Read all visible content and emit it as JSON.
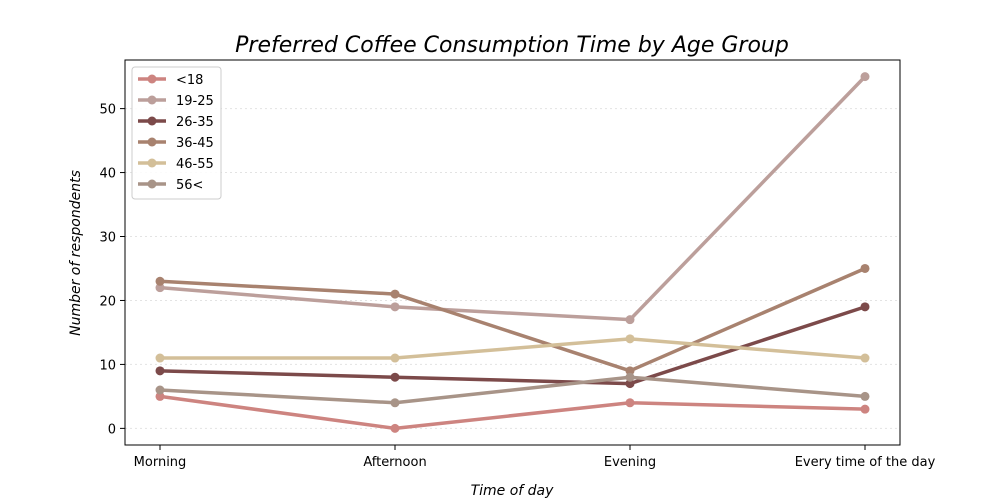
{
  "chart_data": {
    "type": "line",
    "title": "Preferred Coffee Consumption Time by Age Group",
    "xlabel": "Time of day",
    "ylabel": "Number of respondents",
    "categories": [
      "Morning",
      "Afternoon",
      "Evening",
      "Every time of the day"
    ],
    "ylim": [
      -2.6,
      57.6
    ],
    "yticks": [
      0,
      10,
      20,
      30,
      40,
      50
    ],
    "grid": true,
    "legend_position": "top-left",
    "series": [
      {
        "name": "<18",
        "color": "#cd8480",
        "values": [
          5,
          0,
          4,
          3
        ]
      },
      {
        "name": "19-25",
        "color": "#bc9f9b",
        "values": [
          22,
          19,
          17,
          55
        ]
      },
      {
        "name": "26-35",
        "color": "#7c4a4a",
        "values": [
          9,
          8,
          7,
          19
        ]
      },
      {
        "name": "36-45",
        "color": "#a8826f",
        "values": [
          23,
          21,
          9,
          25
        ]
      },
      {
        "name": "46-55",
        "color": "#d3bf99",
        "values": [
          11,
          11,
          14,
          11
        ]
      },
      {
        "name": "56<",
        "color": "#a89488",
        "values": [
          6,
          4,
          8,
          5
        ]
      }
    ]
  }
}
